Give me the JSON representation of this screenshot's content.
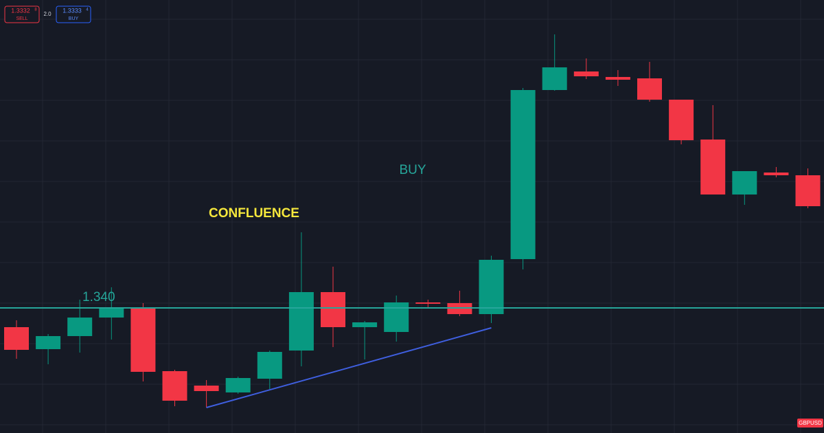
{
  "chart_data": {
    "type": "candlestick",
    "symbol": "GBPUSD",
    "sell_price": "1.3332",
    "sell_pipette": "8",
    "sell_label": "SELL",
    "spread": "2.0",
    "buy_price": "1.3333",
    "buy_pipette": "4",
    "buy_label": "BUY",
    "annotations": [
      {
        "text": "CONFLUENCE",
        "color": "#f5e73c"
      },
      {
        "text": "BUY",
        "color": "#26a69a"
      }
    ],
    "level": {
      "value": 1.34,
      "label": "1.340",
      "color": "#26a69a"
    },
    "trendline": {
      "from": [
        6,
        1.3371
      ],
      "to": [
        15,
        1.33942
      ],
      "color": "#3f5fe0"
    },
    "up_color": "#089981",
    "down_color": "#f23645",
    "ylim": [
      1.33636,
      1.34896
    ],
    "open": [
      1.33944,
      1.3388,
      1.33918,
      1.33972,
      1.33998,
      1.33816,
      1.33774,
      1.33754,
      1.33794,
      1.33876,
      1.34046,
      1.33944,
      1.3393,
      1.34016,
      1.34014,
      1.33982,
      1.34142,
      1.34634,
      1.34688,
      1.34672,
      1.34668,
      1.34606,
      1.3449,
      1.3433,
      1.34394,
      1.34386
    ],
    "high": [
      1.33964,
      1.33924,
      1.34024,
      1.3406,
      1.34014,
      1.3382,
      1.3379,
      1.338,
      1.33876,
      1.3422,
      1.3412,
      1.33962,
      1.34036,
      1.34024,
      1.3405,
      1.34152,
      1.3464,
      1.34796,
      1.34726,
      1.34692,
      1.34716,
      1.34606,
      1.3459,
      1.34398,
      1.3441,
      1.34406
    ],
    "low": [
      1.33852,
      1.33836,
      1.3387,
      1.33908,
      1.33786,
      1.33714,
      1.3371,
      1.3375,
      1.33764,
      1.3383,
      1.33886,
      1.3385,
      1.33902,
      1.34,
      1.33976,
      1.33956,
      1.34112,
      1.34632,
      1.34666,
      1.34646,
      1.346,
      1.34476,
      1.3433,
      1.343,
      1.3438,
      1.3429
    ],
    "close": [
      1.33878,
      1.33918,
      1.33972,
      1.33998,
      1.33814,
      1.3373,
      1.33758,
      1.33796,
      1.33872,
      1.34046,
      1.33944,
      1.33958,
      1.34016,
      1.34012,
      1.33982,
      1.3414,
      1.34634,
      1.347,
      1.34674,
      1.34664,
      1.34606,
      1.34488,
      1.3433,
      1.34398,
      1.34386,
      1.34296
    ]
  }
}
